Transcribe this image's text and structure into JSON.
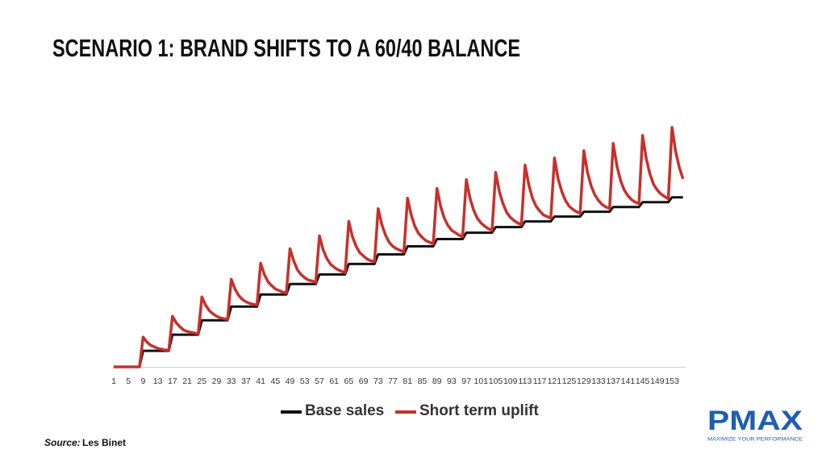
{
  "chart_data": {
    "type": "line",
    "stacked": true,
    "title": "SCENARIO 1: BRAND SHIFTS TO A 60/40 BALANCE",
    "source_label": "Source:",
    "source": "Les Binet",
    "logo": {
      "name": "PMAX",
      "tagline": "MAXIMIZE YOUR PERFORMANCE"
    },
    "categories": [
      "1",
      null,
      null,
      null,
      "5",
      null,
      null,
      null,
      "9",
      null,
      null,
      null,
      "13",
      null,
      null,
      null,
      "17",
      null,
      null,
      null,
      "21",
      null,
      null,
      null,
      "25",
      null,
      null,
      null,
      "29",
      null,
      null,
      null,
      "33",
      null,
      null,
      null,
      "37",
      null,
      null,
      null,
      "41",
      null,
      null,
      null,
      "45",
      null,
      null,
      null,
      "49",
      null,
      null,
      null,
      "53",
      null,
      null,
      null,
      "57",
      null,
      null,
      null,
      "61",
      null,
      null,
      null,
      "65",
      null,
      null,
      null,
      "69",
      null,
      null,
      null,
      "73",
      null,
      null,
      null,
      "77",
      null,
      null,
      null,
      "81",
      null,
      null,
      null,
      "85",
      null,
      null,
      null,
      "89",
      null,
      null,
      null,
      "93",
      null,
      null,
      null,
      "97",
      null,
      null,
      null,
      "101",
      null,
      null,
      null,
      "105",
      null,
      null,
      null,
      "109",
      null,
      null,
      null,
      "113",
      null,
      null,
      null,
      "117",
      null,
      null,
      null,
      "121",
      null,
      null,
      null,
      "125",
      null,
      null,
      null,
      "129",
      null,
      null,
      null,
      "133",
      null,
      null,
      null,
      "137",
      null,
      null,
      null,
      "141",
      null,
      null,
      null,
      "145",
      null,
      null,
      null,
      "149",
      null,
      null,
      null,
      "153",
      null,
      null,
      null
    ],
    "series": [
      {
        "name": "Base sales",
        "color": "#111111",
        "values": [
          0,
          0,
          0,
          0,
          0,
          0,
          0,
          0,
          20,
          20,
          20,
          20,
          20,
          20,
          20,
          20,
          40,
          40,
          40,
          40,
          40,
          40,
          40,
          40,
          58,
          58,
          58,
          58,
          58,
          58,
          58,
          58,
          75,
          75,
          75,
          75,
          75,
          75,
          75,
          75,
          90,
          90,
          90,
          90,
          90,
          90,
          90,
          90,
          103,
          103,
          103,
          103,
          103,
          103,
          103,
          103,
          115,
          115,
          115,
          115,
          115,
          115,
          115,
          115,
          128,
          128,
          128,
          128,
          128,
          128,
          128,
          128,
          140,
          140,
          140,
          140,
          140,
          140,
          140,
          140,
          150,
          150,
          150,
          150,
          150,
          150,
          150,
          150,
          159,
          159,
          159,
          159,
          159,
          159,
          159,
          159,
          167,
          167,
          167,
          167,
          167,
          167,
          167,
          167,
          174,
          174,
          174,
          174,
          174,
          174,
          174,
          174,
          181,
          181,
          181,
          181,
          181,
          181,
          181,
          181,
          187,
          187,
          187,
          187,
          187,
          187,
          187,
          187,
          193,
          193,
          193,
          193,
          193,
          193,
          193,
          193,
          199,
          199,
          199,
          199,
          199,
          199,
          199,
          199,
          205,
          205,
          205,
          205,
          205,
          205,
          205,
          205,
          211,
          211,
          211,
          211
        ]
      },
      {
        "name": "Short term uplift",
        "color": "#c8302c",
        "values": [
          0,
          0,
          0,
          0,
          0,
          0,
          0,
          0,
          17,
          11,
          7,
          5,
          3,
          2,
          1,
          1,
          23,
          15,
          10,
          6,
          4,
          3,
          2,
          1,
          29,
          19,
          12,
          8,
          5,
          3,
          2,
          1,
          34,
          22,
          14,
          9,
          6,
          4,
          3,
          2,
          39,
          25,
          16,
          11,
          7,
          5,
          3,
          2,
          44,
          29,
          18,
          12,
          8,
          5,
          4,
          2,
          48,
          31,
          20,
          13,
          9,
          6,
          4,
          2,
          53,
          34,
          22,
          14,
          10,
          6,
          4,
          3,
          57,
          37,
          24,
          15,
          10,
          7,
          5,
          3,
          60,
          39,
          25,
          16,
          11,
          7,
          5,
          3,
          63,
          41,
          26,
          17,
          11,
          8,
          5,
          3,
          66,
          43,
          28,
          18,
          12,
          8,
          5,
          3,
          68,
          44,
          29,
          18,
          12,
          8,
          5,
          3,
          70,
          46,
          29,
          19,
          13,
          8,
          6,
          4,
          73,
          47,
          31,
          20,
          13,
          9,
          6,
          4,
          76,
          49,
          32,
          21,
          14,
          9,
          6,
          4,
          79,
          51,
          33,
          21,
          14,
          9,
          6,
          4,
          83,
          54,
          35,
          22,
          15,
          10,
          7,
          4,
          87,
          57,
          37,
          23
        ]
      }
    ]
  }
}
